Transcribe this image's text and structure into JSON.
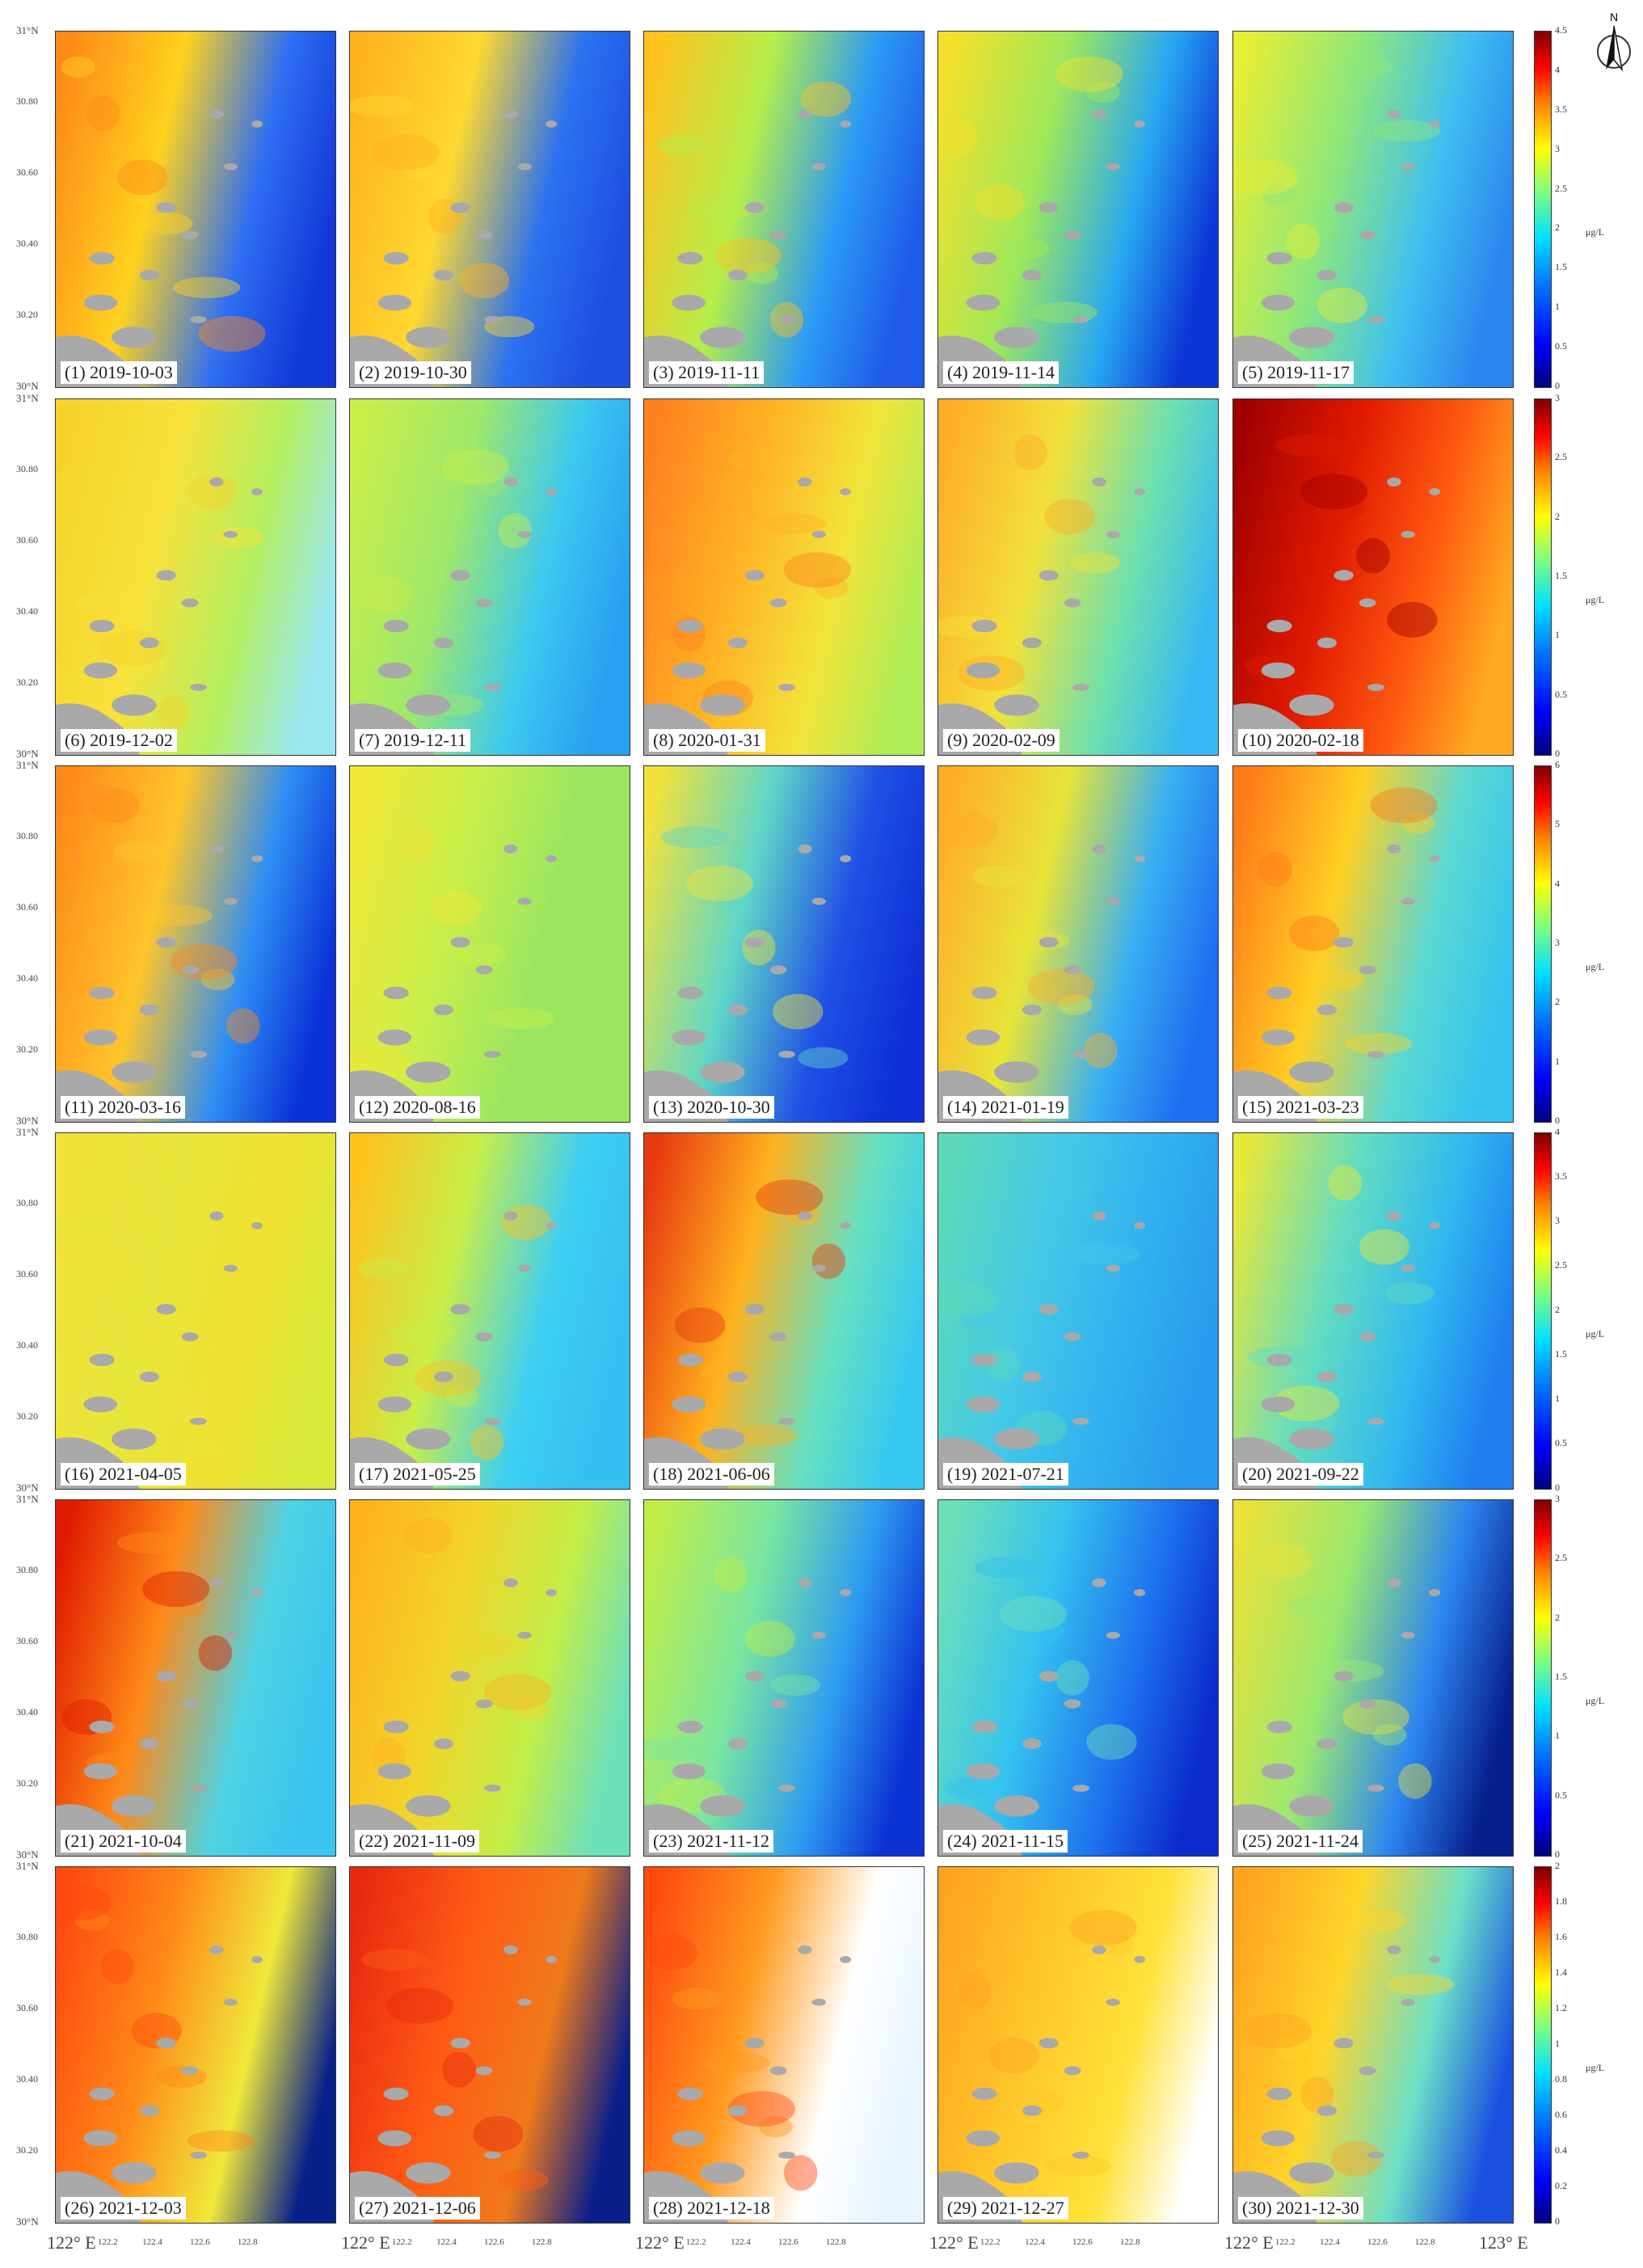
{
  "figure": {
    "panels": [
      {
        "label": "(1) 2019-10-03"
      },
      {
        "label": "(2) 2019-10-30"
      },
      {
        "label": "(3) 2019-11-11"
      },
      {
        "label": "(4) 2019-11-14"
      },
      {
        "label": "(5) 2019-11-17"
      },
      {
        "label": "(6) 2019-12-02"
      },
      {
        "label": "(7) 2019-12-11"
      },
      {
        "label": "(8) 2020-01-31"
      },
      {
        "label": "(9) 2020-02-09"
      },
      {
        "label": "(10) 2020-02-18"
      },
      {
        "label": "(11) 2020-03-16"
      },
      {
        "label": "(12) 2020-08-16"
      },
      {
        "label": "(13) 2020-10-30"
      },
      {
        "label": "(14) 2021-01-19"
      },
      {
        "label": "(15) 2021-03-23"
      },
      {
        "label": "(16) 2021-04-05"
      },
      {
        "label": "(17) 2021-05-25"
      },
      {
        "label": "(18) 2021-06-06"
      },
      {
        "label": "(19) 2021-07-21"
      },
      {
        "label": "(20) 2021-09-22"
      },
      {
        "label": "(21) 2021-10-04"
      },
      {
        "label": "(22) 2021-11-09"
      },
      {
        "label": "(23) 2021-11-12"
      },
      {
        "label": "(24) 2021-11-15"
      },
      {
        "label": "(25) 2021-11-24"
      },
      {
        "label": "(26) 2021-12-03"
      },
      {
        "label": "(27) 2021-12-06"
      },
      {
        "label": "(28) 2021-12-18"
      },
      {
        "label": "(29) 2021-12-27"
      },
      {
        "label": "(30) 2021-12-30"
      }
    ],
    "colorbars": [
      {
        "ticks": [
          "4.5",
          "4",
          "3.5",
          "3",
          "2.5",
          "2",
          "1.5",
          "1",
          "0.5",
          "0"
        ],
        "unit": "μg/L"
      },
      {
        "ticks": [
          "3",
          "2.5",
          "2",
          "1.5",
          "1",
          "0.5",
          "0"
        ],
        "unit": "μg/L"
      },
      {
        "ticks": [
          "6",
          "5",
          "4",
          "3",
          "2",
          "1",
          "0"
        ],
        "unit": "μg/L"
      },
      {
        "ticks": [
          "4",
          "3.5",
          "3",
          "2.5",
          "2",
          "1.5",
          "1",
          "0.5",
          "0"
        ],
        "unit": "μg/L"
      },
      {
        "ticks": [
          "3",
          "2.5",
          "2",
          "1.5",
          "1",
          "0.5",
          "0"
        ],
        "unit": "μg/L"
      },
      {
        "ticks": [
          "2",
          "1.8",
          "1.6",
          "1.4",
          "1.2",
          "1",
          "0.8",
          "0.6",
          "0.4",
          "0.2",
          "0"
        ],
        "unit": "μg/L"
      }
    ],
    "lat_labels": [
      "31°N",
      "30.80",
      "30.60",
      "30.40",
      "30.20",
      "30°N"
    ],
    "lon_labels": [
      "122° E",
      "122.2",
      "122.4",
      "122.6",
      "122.8"
    ],
    "lon_end_label": "123° E",
    "north_letter": "N"
  }
}
